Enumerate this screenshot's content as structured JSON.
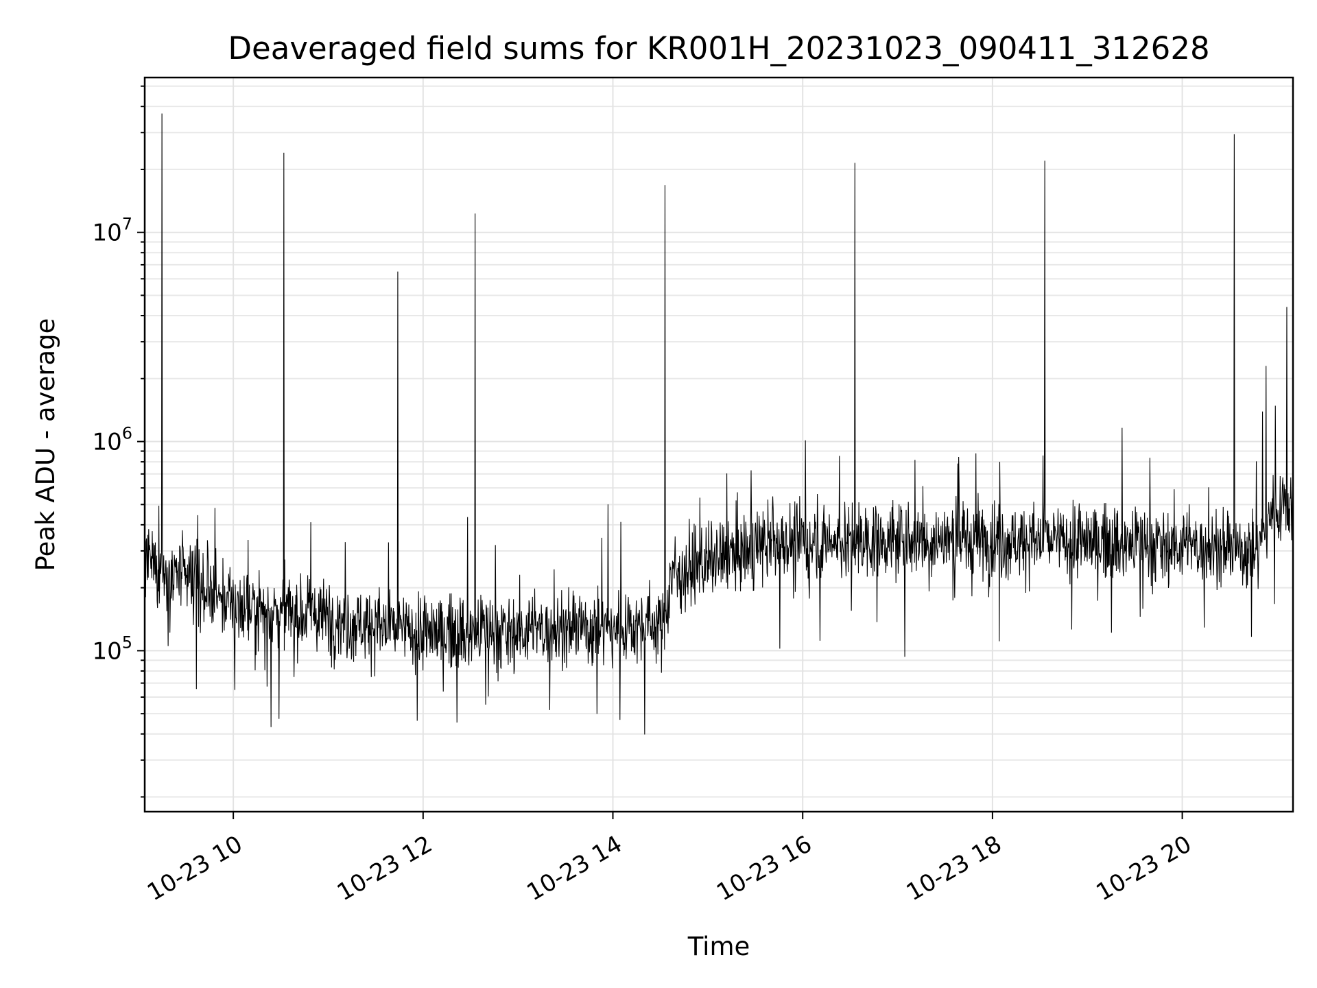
{
  "chart_data": {
    "type": "line",
    "title": "Deaveraged field sums for KR001H_20231023_090411_312628",
    "xlabel": "Time",
    "ylabel": "Peak ADU - average",
    "yscale": "log",
    "grid": true,
    "line_color": "#000000",
    "xlim": [
      "2023-10-23 09:04",
      "2023-10-23 21:10"
    ],
    "ylim": [
      17000,
      55000000
    ],
    "x_ticks": [
      "10-23 10",
      "10-23 12",
      "10-23 14",
      "10-23 16",
      "10-23 18",
      "10-23 20"
    ],
    "y_ticks": [
      {
        "base": "10",
        "exp": "5",
        "value": 100000
      },
      {
        "base": "10",
        "exp": "6",
        "value": 1000000
      },
      {
        "base": "10",
        "exp": "7",
        "value": 10000000
      }
    ],
    "baseline": [
      {
        "hour": 9.07,
        "value": 260000
      },
      {
        "hour": 9.5,
        "value": 220000
      },
      {
        "hour": 10.0,
        "value": 165000
      },
      {
        "hour": 11.0,
        "value": 145000
      },
      {
        "hour": 12.0,
        "value": 120000
      },
      {
        "hour": 13.0,
        "value": 125000
      },
      {
        "hour": 14.0,
        "value": 130000
      },
      {
        "hour": 14.55,
        "value": 135000
      },
      {
        "hour": 14.6,
        "value": 230000
      },
      {
        "hour": 15.0,
        "value": 260000
      },
      {
        "hour": 15.6,
        "value": 320000
      },
      {
        "hour": 16.0,
        "value": 330000
      },
      {
        "hour": 17.0,
        "value": 340000
      },
      {
        "hour": 18.0,
        "value": 340000
      },
      {
        "hour": 19.0,
        "value": 330000
      },
      {
        "hour": 20.0,
        "value": 320000
      },
      {
        "hour": 20.8,
        "value": 300000
      },
      {
        "hour": 20.9,
        "value": 450000
      },
      {
        "hour": 21.17,
        "value": 520000
      }
    ],
    "spikes": [
      {
        "time": "2023-10-23 09:15",
        "value": 37000000
      },
      {
        "time": "2023-10-23 10:32",
        "value": 24000000
      },
      {
        "time": "2023-10-23 11:44",
        "value": 6500000
      },
      {
        "time": "2023-10-23 12:33",
        "value": 12300000
      },
      {
        "time": "2023-10-23 14:33",
        "value": 16800000
      },
      {
        "time": "2023-10-23 16:33",
        "value": 21500000
      },
      {
        "time": "2023-10-23 18:33",
        "value": 22000000
      },
      {
        "time": "2023-10-23 20:33",
        "value": 29500000
      },
      {
        "time": "2023-10-23 20:53",
        "value": 2300000
      },
      {
        "time": "2023-10-23 21:06",
        "value": 4400000
      }
    ]
  }
}
